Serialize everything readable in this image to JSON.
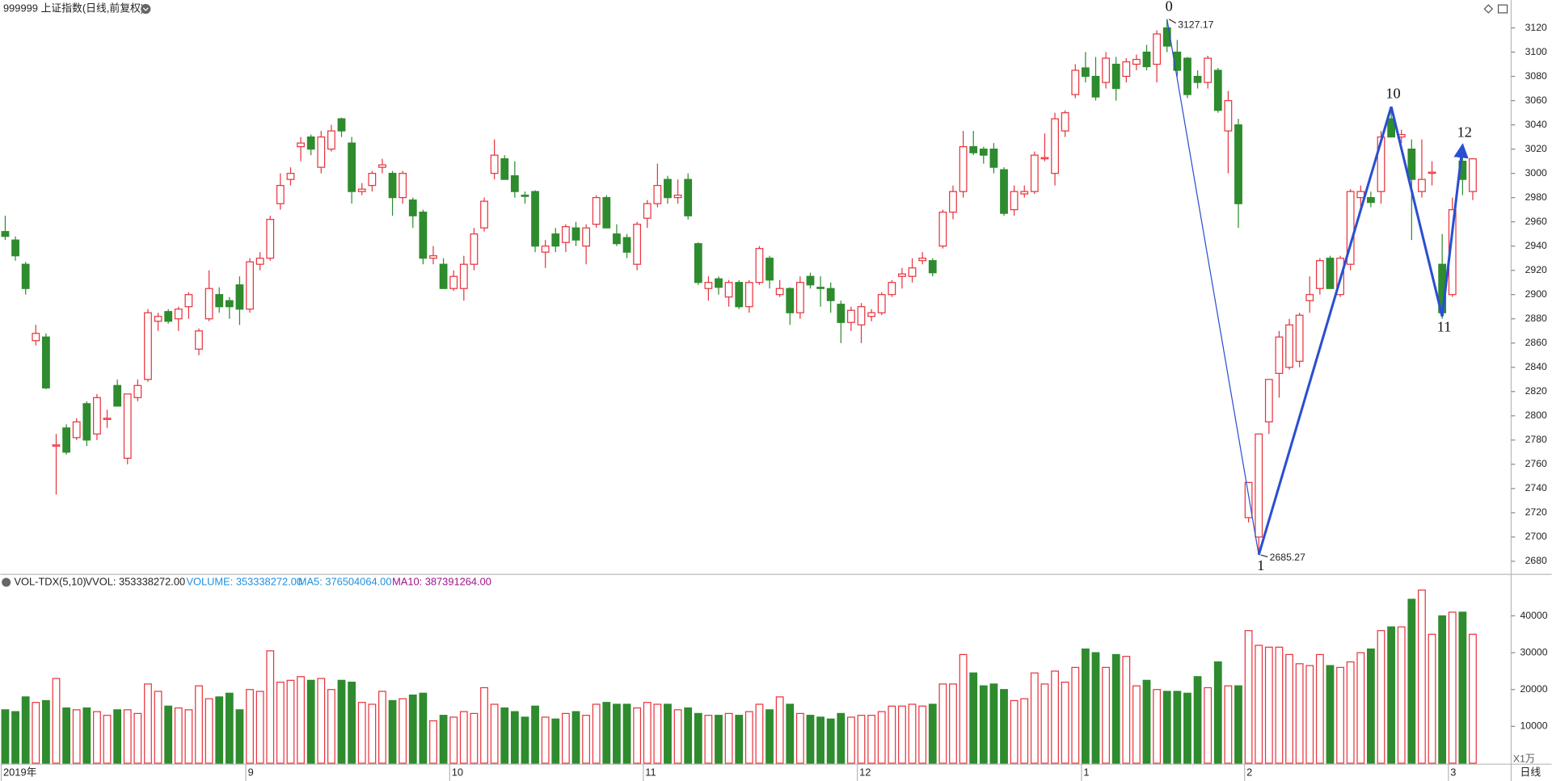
{
  "chart_data": {
    "type": "candlestick",
    "title": "999999 上证指数(日线,前复权)",
    "volume_title": "VOL-TDX(5,10)",
    "volume_legend": [
      "VVOL: 353338272.00",
      "VOLUME: 353338272.00",
      "MA5: 376504064.00",
      "MA10: 387391264.00"
    ],
    "volume_unit": "X1万",
    "period": "日线",
    "up_color": "#e8333d",
    "down_color": "#2e8b2e",
    "categories": [
      "2019年",
      null,
      null,
      null,
      null,
      null,
      null,
      null,
      null,
      null,
      null,
      null,
      null,
      null,
      null,
      null,
      null,
      null,
      null,
      null,
      null,
      null,
      null,
      null,
      "9",
      null,
      null,
      null,
      null,
      null,
      null,
      null,
      null,
      null,
      null,
      null,
      null,
      null,
      null,
      null,
      null,
      null,
      null,
      null,
      "10",
      null,
      null,
      null,
      null,
      null,
      null,
      null,
      null,
      null,
      null,
      null,
      null,
      null,
      null,
      null,
      null,
      null,
      null,
      "11",
      null,
      null,
      null,
      null,
      null,
      null,
      null,
      null,
      null,
      null,
      null,
      null,
      null,
      null,
      null,
      null,
      null,
      null,
      null,
      null,
      "12",
      null,
      null,
      null,
      null,
      null,
      null,
      null,
      null,
      null,
      null,
      null,
      null,
      null,
      null,
      null,
      null,
      null,
      null,
      null,
      null,
      null,
      "1",
      null,
      null,
      null,
      null,
      null,
      null,
      null,
      null,
      null,
      null,
      null,
      null,
      null,
      null,
      null,
      "2",
      null,
      null,
      null,
      null,
      null,
      null,
      null,
      null,
      null,
      null,
      null,
      null,
      null,
      null,
      null,
      null,
      null,
      null,
      null,
      "3",
      null,
      null
    ],
    "ohlc": [
      [
        2952,
        2965,
        2945,
        2948
      ],
      [
        2945,
        2948,
        2928,
        2932
      ],
      [
        2925,
        2927,
        2900,
        2905
      ],
      [
        2862,
        2875,
        2858,
        2868
      ],
      [
        2865,
        2868,
        2822,
        2823
      ],
      [
        2775,
        2785,
        2735,
        2776
      ],
      [
        2790,
        2793,
        2768,
        2770
      ],
      [
        2782,
        2798,
        2780,
        2795
      ],
      [
        2810,
        2812,
        2775,
        2780
      ],
      [
        2785,
        2818,
        2780,
        2815
      ],
      [
        2797,
        2805,
        2790,
        2798
      ],
      [
        2825,
        2830,
        2808,
        2808
      ],
      [
        2765,
        2818,
        2760,
        2818
      ],
      [
        2815,
        2830,
        2812,
        2825
      ],
      [
        2830,
        2888,
        2828,
        2885
      ],
      [
        2878,
        2885,
        2870,
        2882
      ],
      [
        2886,
        2888,
        2876,
        2878
      ],
      [
        2880,
        2890,
        2870,
        2888
      ],
      [
        2890,
        2902,
        2880,
        2900
      ],
      [
        2855,
        2872,
        2850,
        2870
      ],
      [
        2880,
        2920,
        2878,
        2905
      ],
      [
        2900,
        2906,
        2885,
        2890
      ],
      [
        2895,
        2898,
        2880,
        2890
      ],
      [
        2908,
        2915,
        2875,
        2888
      ],
      [
        2888,
        2930,
        2885,
        2927
      ],
      [
        2925,
        2935,
        2920,
        2930
      ],
      [
        2930,
        2965,
        2928,
        2962
      ],
      [
        2975,
        3000,
        2970,
        2990
      ],
      [
        2995,
        3005,
        2990,
        3000
      ],
      [
        3022,
        3030,
        3010,
        3025
      ],
      [
        3030,
        3032,
        3015,
        3020
      ],
      [
        3005,
        3035,
        3000,
        3030
      ],
      [
        3020,
        3040,
        3018,
        3035
      ],
      [
        3045,
        3046,
        3030,
        3035
      ],
      [
        3025,
        3030,
        2975,
        2985
      ],
      [
        2985,
        2992,
        2982,
        2987
      ],
      [
        2990,
        3002,
        2985,
        3000
      ],
      [
        3005,
        3012,
        3000,
        3007
      ],
      [
        3000,
        3002,
        2965,
        2980
      ],
      [
        2980,
        3002,
        2975,
        3000
      ],
      [
        2978,
        2980,
        2955,
        2965
      ],
      [
        2968,
        2970,
        2925,
        2930
      ],
      [
        2930,
        2940,
        2925,
        2932
      ],
      [
        2925,
        2930,
        2905,
        2905
      ],
      [
        2905,
        2920,
        2903,
        2915
      ],
      [
        2905,
        2932,
        2895,
        2925
      ],
      [
        2925,
        2955,
        2920,
        2950
      ],
      [
        2955,
        2980,
        2952,
        2977
      ],
      [
        3000,
        3028,
        2995,
        3015
      ],
      [
        3012,
        3015,
        2995,
        2995
      ],
      [
        2998,
        3010,
        2980,
        2985
      ],
      [
        2982,
        2985,
        2975,
        2981
      ],
      [
        2985,
        2986,
        2935,
        2940
      ],
      [
        2935,
        2945,
        2922,
        2940
      ],
      [
        2950,
        2955,
        2935,
        2940
      ],
      [
        2943,
        2958,
        2935,
        2956
      ],
      [
        2955,
        2960,
        2940,
        2945
      ],
      [
        2940,
        2958,
        2925,
        2955
      ],
      [
        2958,
        2982,
        2955,
        2980
      ],
      [
        2980,
        2982,
        2955,
        2955
      ],
      [
        2950,
        2958,
        2940,
        2942
      ],
      [
        2947,
        2950,
        2930,
        2935
      ],
      [
        2925,
        2960,
        2920,
        2958
      ],
      [
        2963,
        2978,
        2955,
        2975
      ],
      [
        2975,
        3008,
        2972,
        2990
      ],
      [
        2995,
        2998,
        2975,
        2980
      ],
      [
        2980,
        2995,
        2975,
        2982
      ],
      [
        2995,
        3000,
        2962,
        2965
      ],
      [
        2942,
        2943,
        2908,
        2910
      ],
      [
        2905,
        2915,
        2895,
        2910
      ],
      [
        2913,
        2915,
        2900,
        2906
      ],
      [
        2898,
        2912,
        2890,
        2910
      ],
      [
        2910,
        2912,
        2888,
        2890
      ],
      [
        2890,
        2912,
        2885,
        2910
      ],
      [
        2910,
        2940,
        2908,
        2938
      ],
      [
        2930,
        2932,
        2905,
        2912
      ],
      [
        2900,
        2912,
        2898,
        2905
      ],
      [
        2905,
        2906,
        2875,
        2885
      ],
      [
        2885,
        2915,
        2880,
        2910
      ],
      [
        2915,
        2918,
        2905,
        2908
      ],
      [
        2906,
        2915,
        2890,
        2905
      ],
      [
        2905,
        2910,
        2885,
        2895
      ],
      [
        2892,
        2895,
        2860,
        2877
      ],
      [
        2877,
        2890,
        2870,
        2887
      ],
      [
        2875,
        2893,
        2860,
        2890
      ],
      [
        2882,
        2888,
        2878,
        2885
      ],
      [
        2885,
        2902,
        2883,
        2900
      ],
      [
        2900,
        2912,
        2898,
        2910
      ],
      [
        2915,
        2922,
        2905,
        2917
      ],
      [
        2915,
        2930,
        2910,
        2922
      ],
      [
        2928,
        2935,
        2925,
        2930
      ],
      [
        2928,
        2930,
        2915,
        2918
      ],
      [
        2940,
        2970,
        2938,
        2968
      ],
      [
        2968,
        2990,
        2962,
        2985
      ],
      [
        2985,
        3035,
        2980,
        3022
      ],
      [
        3022,
        3035,
        3015,
        3017
      ],
      [
        3020,
        3022,
        3008,
        3015
      ],
      [
        3020,
        3025,
        3000,
        3005
      ],
      [
        3003,
        3005,
        2965,
        2967
      ],
      [
        2970,
        2990,
        2965,
        2985
      ],
      [
        2983,
        2990,
        2980,
        2985
      ],
      [
        2985,
        3018,
        2983,
        3015
      ],
      [
        3012,
        3033,
        3010,
        3013
      ],
      [
        3000,
        3050,
        2990,
        3045
      ],
      [
        3035,
        3052,
        3030,
        3050
      ],
      [
        3065,
        3090,
        3062,
        3085
      ],
      [
        3087,
        3100,
        3075,
        3080
      ],
      [
        3080,
        3096,
        3060,
        3063
      ],
      [
        3075,
        3100,
        3070,
        3095
      ],
      [
        3090,
        3096,
        3060,
        3070
      ],
      [
        3080,
        3095,
        3075,
        3092
      ],
      [
        3090,
        3098,
        3085,
        3094
      ],
      [
        3100,
        3106,
        3085,
        3088
      ],
      [
        3090,
        3118,
        3075,
        3115
      ],
      [
        3120,
        3127.17,
        3100,
        3105
      ],
      [
        3100,
        3110,
        3080,
        3085
      ],
      [
        3095,
        3096,
        3062,
        3065
      ],
      [
        3080,
        3085,
        3070,
        3075
      ],
      [
        3075,
        3097,
        3070,
        3095
      ],
      [
        3085,
        3087,
        3050,
        3052
      ],
      [
        3035,
        3068,
        3000,
        3060
      ],
      [
        3040,
        3045,
        2955,
        2975
      ],
      [
        2716,
        2745,
        2712,
        2745
      ],
      [
        2700,
        2785,
        2685.27,
        2785
      ],
      [
        2795,
        2830,
        2785,
        2830
      ],
      [
        2835,
        2870,
        2815,
        2865
      ],
      [
        2840,
        2880,
        2838,
        2875
      ],
      [
        2845,
        2885,
        2840,
        2883
      ],
      [
        2895,
        2915,
        2885,
        2900
      ],
      [
        2905,
        2930,
        2900,
        2928
      ],
      [
        2930,
        2932,
        2905,
        2905
      ],
      [
        2900,
        2932,
        2898,
        2930
      ],
      [
        2925,
        2987,
        2920,
        2985
      ],
      [
        2980,
        2990,
        2972,
        2985
      ],
      [
        2980,
        2985,
        2972,
        2976
      ],
      [
        2985,
        3035,
        2975,
        3030
      ],
      [
        3045,
        3055,
        3030,
        3030
      ],
      [
        3030,
        3036,
        3025,
        3032
      ],
      [
        3020,
        3028,
        2945,
        2995
      ],
      [
        2985,
        3028,
        2980,
        2995
      ],
      [
        3000,
        3010,
        2990,
        3001
      ],
      [
        2925,
        2950,
        2880,
        2885
      ],
      [
        2900,
        2980,
        2898,
        2970
      ],
      [
        3010,
        3015,
        2982,
        2995
      ],
      [
        2985,
        3012,
        2978,
        3012
      ]
    ],
    "volume": [
      14500,
      14000,
      18000,
      16500,
      17000,
      23000,
      15000,
      14500,
      15000,
      14000,
      13000,
      14500,
      14500,
      13500,
      21500,
      19500,
      15500,
      15000,
      14500,
      21000,
      17500,
      18000,
      19000,
      14500,
      20000,
      19500,
      30500,
      22000,
      22500,
      23500,
      22500,
      23000,
      20000,
      22500,
      22000,
      16500,
      16000,
      19500,
      17000,
      17500,
      18500,
      19000,
      11500,
      13000,
      12500,
      14000,
      13500,
      20500,
      16000,
      15000,
      14000,
      12500,
      15500,
      12500,
      12000,
      13500,
      14000,
      13000,
      16000,
      16500,
      16000,
      16000,
      15000,
      16500,
      16000,
      16000,
      14500,
      15000,
      13500,
      13000,
      13000,
      13500,
      13000,
      14000,
      16000,
      14500,
      18000,
      16000,
      13500,
      13000,
      12500,
      12000,
      13500,
      12500,
      13000,
      13000,
      14000,
      15500,
      15500,
      16000,
      15500,
      16000,
      21500,
      21500,
      29500,
      24500,
      21000,
      21500,
      20000,
      17000,
      17500,
      24500,
      21500,
      25000,
      22000,
      26000,
      31000,
      30000,
      26000,
      29500,
      29000,
      21000,
      22500,
      20000,
      19500,
      19500,
      19000,
      23500,
      20500,
      27500,
      21000,
      21000,
      36000,
      32000,
      31500,
      31500,
      29500,
      27000,
      26500,
      29500,
      26500,
      26000,
      27500,
      30000,
      31000,
      36000,
      37000,
      37000,
      44500,
      47000,
      35000,
      40000,
      41000,
      41000,
      35000
    ],
    "ylim": [
      2670,
      3143
    ],
    "yticks": [
      2680,
      2700,
      2720,
      2740,
      2760,
      2780,
      2800,
      2820,
      2840,
      2860,
      2880,
      2900,
      2920,
      2940,
      2960,
      2980,
      3000,
      3020,
      3040,
      3060,
      3080,
      3100,
      3120
    ],
    "volume_ylim": [
      0,
      47500
    ],
    "volume_yticks": [
      10000,
      20000,
      30000,
      40000
    ],
    "annotations": [
      {
        "label": "0",
        "index": 114,
        "value": 3127.17,
        "show_value": true,
        "position": "above"
      },
      {
        "label": "1",
        "index": 123,
        "value": 2685.27,
        "show_value": true,
        "position": "below"
      },
      {
        "label": "10",
        "index": 136,
        "value": 3055,
        "show_value": false,
        "position": "above"
      },
      {
        "label": "11",
        "index": 141,
        "value": 2882,
        "show_value": false,
        "position": "below"
      },
      {
        "label": "12",
        "index": 143,
        "value": 3023,
        "show_value": false,
        "position": "above"
      }
    ],
    "annotation_color": "#2a4fd1"
  }
}
